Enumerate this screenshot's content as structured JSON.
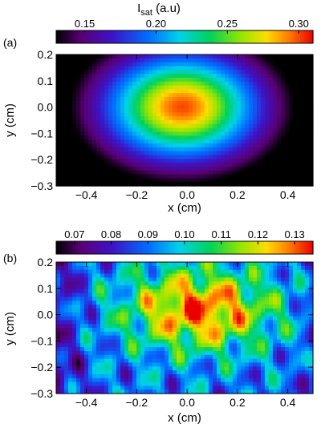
{
  "title": {
    "main": "I",
    "subscript": "sat",
    "suffix": " (a.u)"
  },
  "chart_data": [
    {
      "type": "heatmap",
      "panel_label": "(a)",
      "xlabel": "x (cm)",
      "ylabel": "y (cm)",
      "xlim": [
        -0.52,
        0.5
      ],
      "ylim": [
        -0.3,
        0.2
      ],
      "xticks": [
        -0.4,
        -0.2,
        0.0,
        0.2,
        0.4
      ],
      "xtick_labels": [
        "−0.4",
        "−0.2",
        "0.0",
        "0.2",
        "0.4"
      ],
      "yticks": [
        -0.3,
        -0.2,
        -0.1,
        0.0,
        0.1,
        0.2
      ],
      "ytick_labels": [
        "−0.3",
        "−0.2",
        "−0.1",
        "0.0",
        "0.1",
        "0.2"
      ],
      "colorbar": {
        "min": 0.13,
        "max": 0.31,
        "ticks": [
          0.15,
          0.2,
          0.25,
          0.3
        ],
        "tick_labels": [
          "0.15",
          "0.20",
          "0.25",
          "0.30"
        ],
        "colormap": "rainbow (black-purple-blue-cyan-green-yellow-orange-red)"
      },
      "peak": {
        "x": -0.02,
        "y": 0.0,
        "value": 0.3
      },
      "background_value": 0.15
    },
    {
      "type": "heatmap",
      "panel_label": "(b)",
      "xlabel": "x (cm)",
      "ylabel": "y (cm)",
      "xlim": [
        -0.52,
        0.5
      ],
      "ylim": [
        -0.3,
        0.2
      ],
      "xticks": [
        -0.4,
        -0.2,
        0.0,
        0.2,
        0.4
      ],
      "xtick_labels": [
        "−0.4",
        "−0.2",
        "0.0",
        "0.2",
        "0.4"
      ],
      "yticks": [
        -0.3,
        -0.2,
        -0.1,
        0.0,
        0.1,
        0.2
      ],
      "ytick_labels": [
        "−0.3",
        "−0.2",
        "−0.1",
        "0.0",
        "0.1",
        "0.2"
      ],
      "colorbar": {
        "min": 0.065,
        "max": 0.135,
        "ticks": [
          0.07,
          0.08,
          0.09,
          0.1,
          0.11,
          0.12,
          0.13
        ],
        "tick_labels": [
          "0.07",
          "0.08",
          "0.09",
          "0.10",
          "0.11",
          "0.12",
          "0.13"
        ],
        "colormap": "rainbow (black-purple-blue-cyan-green-yellow-orange-red)"
      },
      "peak": {
        "x": 0.05,
        "y": 0.02,
        "value": 0.13
      },
      "background_value": 0.09
    }
  ]
}
